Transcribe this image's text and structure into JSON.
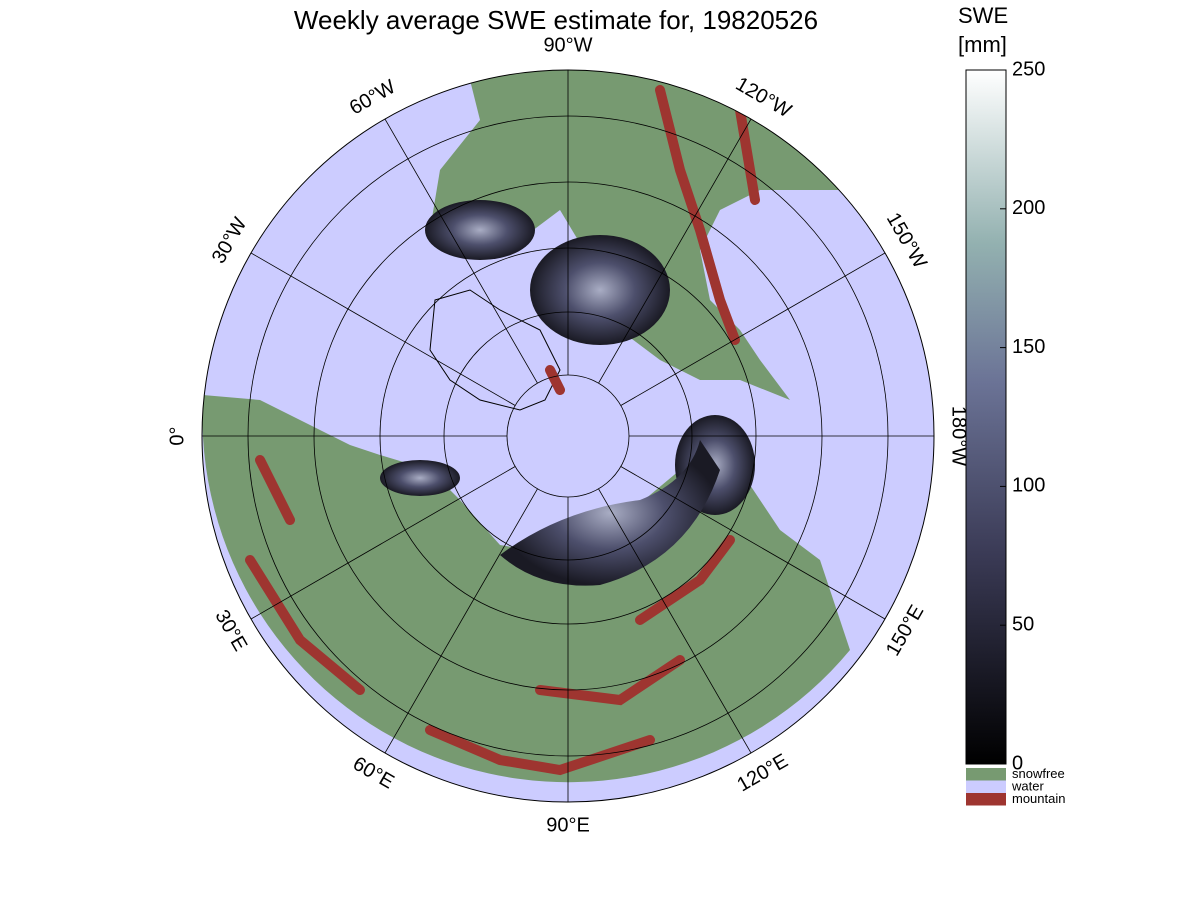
{
  "title": "Weekly average SWE estimate for, 19820526",
  "map": {
    "meridian_labels": [
      {
        "label": "0°",
        "lon": 0
      },
      {
        "label": "30°E",
        "lon": 30
      },
      {
        "label": "60°E",
        "lon": 60
      },
      {
        "label": "90°E",
        "lon": 90
      },
      {
        "label": "120°E",
        "lon": 120
      },
      {
        "label": "150°E",
        "lon": 150
      },
      {
        "label": "180°W",
        "lon": 180
      },
      {
        "label": "150°W",
        "lon": -150
      },
      {
        "label": "120°W",
        "lon": -120
      },
      {
        "label": "90°W",
        "lon": -90
      },
      {
        "label": "60°W",
        "lon": -60
      },
      {
        "label": "30°W",
        "lon": -30
      }
    ]
  },
  "colorbar": {
    "label": [
      "SWE",
      "[mm]"
    ],
    "lim": [
      0,
      250
    ],
    "ticks": [
      0,
      50,
      100,
      150,
      200,
      250
    ]
  },
  "legend": [
    {
      "name": "snowfree",
      "color": "#779a71"
    },
    {
      "name": "water",
      "color": "#ccccff"
    },
    {
      "name": "mountain",
      "color": "#9e3530"
    }
  ]
}
